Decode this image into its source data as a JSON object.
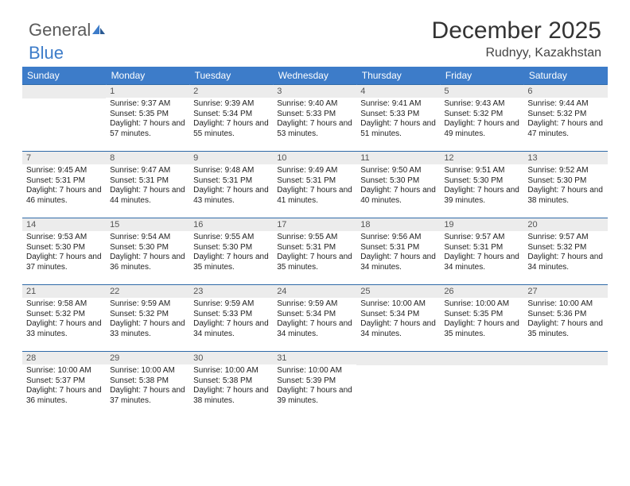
{
  "logo": {
    "part1": "General",
    "part2": "Blue"
  },
  "title": "December 2025",
  "subtitle": "Rudnyy, Kazakhstan",
  "colors": {
    "header_bg": "#3d7cc9",
    "header_text": "#ffffff",
    "row_border": "#2f6aa8",
    "daynum_bg": "#ececec",
    "text": "#222222"
  },
  "weekdays": [
    "Sunday",
    "Monday",
    "Tuesday",
    "Wednesday",
    "Thursday",
    "Friday",
    "Saturday"
  ],
  "start_offset": 1,
  "days": [
    {
      "n": 1,
      "sunrise": "9:37 AM",
      "sunset": "5:35 PM",
      "daylight": "7 hours and 57 minutes."
    },
    {
      "n": 2,
      "sunrise": "9:39 AM",
      "sunset": "5:34 PM",
      "daylight": "7 hours and 55 minutes."
    },
    {
      "n": 3,
      "sunrise": "9:40 AM",
      "sunset": "5:33 PM",
      "daylight": "7 hours and 53 minutes."
    },
    {
      "n": 4,
      "sunrise": "9:41 AM",
      "sunset": "5:33 PM",
      "daylight": "7 hours and 51 minutes."
    },
    {
      "n": 5,
      "sunrise": "9:43 AM",
      "sunset": "5:32 PM",
      "daylight": "7 hours and 49 minutes."
    },
    {
      "n": 6,
      "sunrise": "9:44 AM",
      "sunset": "5:32 PM",
      "daylight": "7 hours and 47 minutes."
    },
    {
      "n": 7,
      "sunrise": "9:45 AM",
      "sunset": "5:31 PM",
      "daylight": "7 hours and 46 minutes."
    },
    {
      "n": 8,
      "sunrise": "9:47 AM",
      "sunset": "5:31 PM",
      "daylight": "7 hours and 44 minutes."
    },
    {
      "n": 9,
      "sunrise": "9:48 AM",
      "sunset": "5:31 PM",
      "daylight": "7 hours and 43 minutes."
    },
    {
      "n": 10,
      "sunrise": "9:49 AM",
      "sunset": "5:31 PM",
      "daylight": "7 hours and 41 minutes."
    },
    {
      "n": 11,
      "sunrise": "9:50 AM",
      "sunset": "5:30 PM",
      "daylight": "7 hours and 40 minutes."
    },
    {
      "n": 12,
      "sunrise": "9:51 AM",
      "sunset": "5:30 PM",
      "daylight": "7 hours and 39 minutes."
    },
    {
      "n": 13,
      "sunrise": "9:52 AM",
      "sunset": "5:30 PM",
      "daylight": "7 hours and 38 minutes."
    },
    {
      "n": 14,
      "sunrise": "9:53 AM",
      "sunset": "5:30 PM",
      "daylight": "7 hours and 37 minutes."
    },
    {
      "n": 15,
      "sunrise": "9:54 AM",
      "sunset": "5:30 PM",
      "daylight": "7 hours and 36 minutes."
    },
    {
      "n": 16,
      "sunrise": "9:55 AM",
      "sunset": "5:30 PM",
      "daylight": "7 hours and 35 minutes."
    },
    {
      "n": 17,
      "sunrise": "9:55 AM",
      "sunset": "5:31 PM",
      "daylight": "7 hours and 35 minutes."
    },
    {
      "n": 18,
      "sunrise": "9:56 AM",
      "sunset": "5:31 PM",
      "daylight": "7 hours and 34 minutes."
    },
    {
      "n": 19,
      "sunrise": "9:57 AM",
      "sunset": "5:31 PM",
      "daylight": "7 hours and 34 minutes."
    },
    {
      "n": 20,
      "sunrise": "9:57 AM",
      "sunset": "5:32 PM",
      "daylight": "7 hours and 34 minutes."
    },
    {
      "n": 21,
      "sunrise": "9:58 AM",
      "sunset": "5:32 PM",
      "daylight": "7 hours and 33 minutes."
    },
    {
      "n": 22,
      "sunrise": "9:59 AM",
      "sunset": "5:32 PM",
      "daylight": "7 hours and 33 minutes."
    },
    {
      "n": 23,
      "sunrise": "9:59 AM",
      "sunset": "5:33 PM",
      "daylight": "7 hours and 34 minutes."
    },
    {
      "n": 24,
      "sunrise": "9:59 AM",
      "sunset": "5:34 PM",
      "daylight": "7 hours and 34 minutes."
    },
    {
      "n": 25,
      "sunrise": "10:00 AM",
      "sunset": "5:34 PM",
      "daylight": "7 hours and 34 minutes."
    },
    {
      "n": 26,
      "sunrise": "10:00 AM",
      "sunset": "5:35 PM",
      "daylight": "7 hours and 35 minutes."
    },
    {
      "n": 27,
      "sunrise": "10:00 AM",
      "sunset": "5:36 PM",
      "daylight": "7 hours and 35 minutes."
    },
    {
      "n": 28,
      "sunrise": "10:00 AM",
      "sunset": "5:37 PM",
      "daylight": "7 hours and 36 minutes."
    },
    {
      "n": 29,
      "sunrise": "10:00 AM",
      "sunset": "5:38 PM",
      "daylight": "7 hours and 37 minutes."
    },
    {
      "n": 30,
      "sunrise": "10:00 AM",
      "sunset": "5:38 PM",
      "daylight": "7 hours and 38 minutes."
    },
    {
      "n": 31,
      "sunrise": "10:00 AM",
      "sunset": "5:39 PM",
      "daylight": "7 hours and 39 minutes."
    }
  ],
  "labels": {
    "sunrise": "Sunrise:",
    "sunset": "Sunset:",
    "daylight": "Daylight:"
  }
}
